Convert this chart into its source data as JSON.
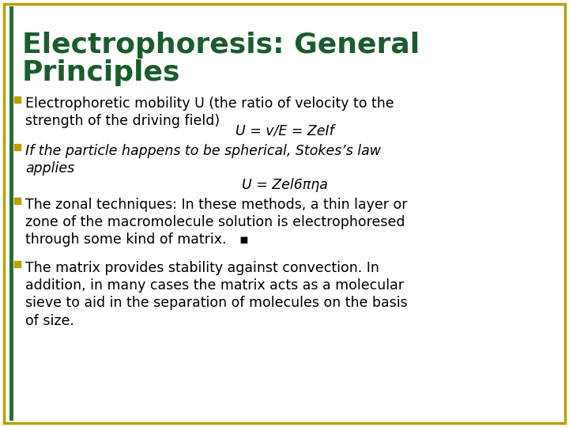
{
  "background_color": "#ffffff",
  "border_color_outer": "#b8a000",
  "border_color_inner": "#2d6b3c",
  "title_line1": "Electrophoresis: General",
  "title_line2": "Principles",
  "title_color": "#1a5c2e",
  "title_fontsize": 26,
  "title_fontweight": "bold",
  "bullet_color": "#b8a000",
  "text_color": "#000000",
  "text_fontsize": 12.5,
  "formula_fontsize": 12.5,
  "formula_color": "#000000",
  "left_bar_color": "#2d6b3c",
  "bullet1_normal1": "Electrophoretic mobility ",
  "bullet1_italic": "U",
  "bullet1_normal2": " (the ratio of velocity to the\nstrength of the driving field)",
  "bullet1_formula": "U = v/E = ZeIf",
  "bullet2_italic": "If the particle happens to be spherical, Stokes’s law\napplies",
  "bullet2_formula": "U = Zel6πηa",
  "bullet3_text": "The zonal techniques: In these methods, a thin layer or\nzone of the macromolecule solution is electrophoresed\nthrough some kind of matrix.   ▪",
  "bullet4_text": "The matrix provides stability against convection. In\naddition, in many cases the matrix acts as a molecular\nsieve to aid in the separation of molecules on the basis\nof size."
}
